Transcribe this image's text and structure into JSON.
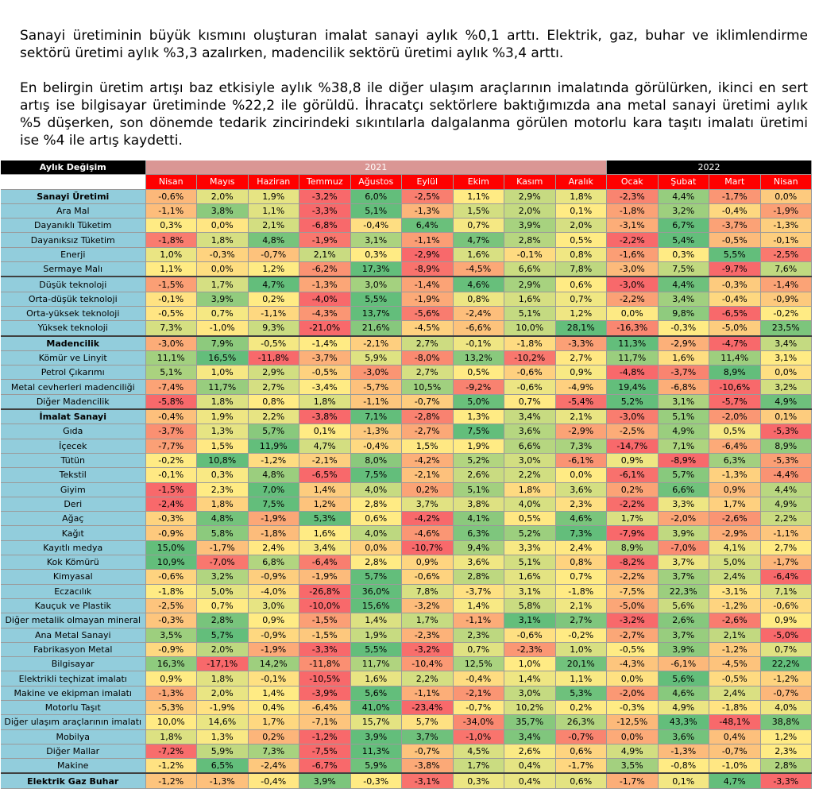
{
  "paragraphs": [
    "Sanayi üretiminin büyük kısmını oluşturan imalat sanayi aylık %0,1 arttı. Elektrik, gaz, buhar ve iklimlendirme sektörü üretimi aylık %3,3 azalırken, madencilik sektörü üretimi aylık %3,4 arttı.",
    "En belirgin üretim artışı baz etkisiyle aylık %38,8 ile diğer ulaşım araçlarının imalatında görülürken, ikinci en sert artış ise bilgisayar üretiminde %22,2 ile görüldü. İhracatçı sektörlere baktığımızda ana metal sanayi üretimi aylık %5 düşerken, son dönemde tedarik zincirindeki sıkıntılarla dalgalanma görülen motorlu kara taşıtı imalatı üretimi ise %4 ile artış kaydetti."
  ],
  "table": {
    "header_label": "Aylık Değişim",
    "year_2021": "2021",
    "year_2022": "2022",
    "months": [
      "Nisan",
      "Mayıs",
      "Haziran",
      "Temmuz",
      "Ağustos",
      "Eylül",
      "Ekim",
      "Kasım",
      "Aralık",
      "Ocak",
      "Şubat",
      "Mart",
      "Nisan"
    ],
    "rows": [
      {
        "label": "Sanayi Üretimi",
        "bold": true,
        "values": [
          "-0,6%",
          "2,0%",
          "1,9%",
          "-3,2%",
          "6,0%",
          "-2,5%",
          "1,1%",
          "2,9%",
          "1,8%",
          "-2,3%",
          "4,4%",
          "-1,7%",
          "0,0%"
        ]
      },
      {
        "label": "Ara Mal",
        "values": [
          "-1,1%",
          "3,8%",
          "1,1%",
          "-3,3%",
          "5,1%",
          "-1,3%",
          "1,5%",
          "2,0%",
          "0,1%",
          "-1,8%",
          "3,2%",
          "-0,4%",
          "-1,9%"
        ]
      },
      {
        "label": "Dayanıklı Tüketim",
        "values": [
          "0,3%",
          "0,0%",
          "2,1%",
          "-6,8%",
          "-0,4%",
          "6,4%",
          "0,7%",
          "3,9%",
          "2,0%",
          "-3,1%",
          "6,7%",
          "-3,7%",
          "-1,3%"
        ]
      },
      {
        "label": "Dayanıksız Tüketim",
        "values": [
          "-1,8%",
          "1,8%",
          "4,8%",
          "-1,9%",
          "3,1%",
          "-1,1%",
          "4,7%",
          "2,8%",
          "0,5%",
          "-2,2%",
          "5,4%",
          "-0,5%",
          "-0,1%"
        ]
      },
      {
        "label": "Enerji",
        "values": [
          "1,0%",
          "-0,3%",
          "-0,7%",
          "2,1%",
          "0,3%",
          "-2,9%",
          "1,6%",
          "-0,1%",
          "0,8%",
          "-1,6%",
          "0,3%",
          "5,5%",
          "-2,5%"
        ]
      },
      {
        "label": "Sermaye Malı",
        "values": [
          "1,1%",
          "0,0%",
          "1,2%",
          "-6,2%",
          "17,3%",
          "-8,9%",
          "-4,5%",
          "6,6%",
          "7,8%",
          "-3,0%",
          "7,5%",
          "-9,7%",
          "7,6%"
        ]
      },
      {
        "label": "Düşük teknoloji",
        "sep": true,
        "values": [
          "-1,5%",
          "1,7%",
          "4,7%",
          "-1,3%",
          "3,0%",
          "-1,4%",
          "4,6%",
          "2,9%",
          "0,6%",
          "-3,0%",
          "4,4%",
          "-0,3%",
          "-1,4%"
        ]
      },
      {
        "label": "Orta-düşük teknoloji",
        "values": [
          "-0,1%",
          "3,9%",
          "0,2%",
          "-4,0%",
          "5,5%",
          "-1,9%",
          "0,8%",
          "1,6%",
          "0,7%",
          "-2,2%",
          "3,4%",
          "-0,4%",
          "-0,9%"
        ]
      },
      {
        "label": "Orta-yüksek teknoloji",
        "values": [
          "-0,5%",
          "0,7%",
          "-1,1%",
          "-4,3%",
          "13,7%",
          "-5,6%",
          "-2,4%",
          "5,1%",
          "1,2%",
          "0,0%",
          "9,8%",
          "-6,5%",
          "-0,2%"
        ]
      },
      {
        "label": "Yüksek teknoloji",
        "values": [
          "7,3%",
          "-1,0%",
          "9,3%",
          "-21,0%",
          "21,6%",
          "-4,5%",
          "-6,6%",
          "10,0%",
          "28,1%",
          "-16,3%",
          "-0,3%",
          "-5,0%",
          "23,5%"
        ]
      },
      {
        "label": "Madencilik",
        "bold": true,
        "sep": true,
        "values": [
          "-3,0%",
          "7,9%",
          "-0,5%",
          "-1,4%",
          "-2,1%",
          "2,7%",
          "-0,1%",
          "-1,8%",
          "-3,3%",
          "11,3%",
          "-2,9%",
          "-4,7%",
          "3,4%"
        ]
      },
      {
        "label": "Kömür ve Linyit",
        "values": [
          "11,1%",
          "16,5%",
          "-11,8%",
          "-3,7%",
          "5,9%",
          "-8,0%",
          "13,2%",
          "-10,2%",
          "2,7%",
          "11,7%",
          "1,6%",
          "11,4%",
          "3,1%"
        ]
      },
      {
        "label": "Petrol Çıkarımı",
        "values": [
          "5,1%",
          "1,0%",
          "2,9%",
          "-0,5%",
          "-3,0%",
          "2,7%",
          "0,5%",
          "-0,6%",
          "0,9%",
          "-4,8%",
          "-3,7%",
          "8,9%",
          "0,0%"
        ]
      },
      {
        "label": "Metal cevherleri madenciliği",
        "values": [
          "-7,4%",
          "11,7%",
          "2,7%",
          "-3,4%",
          "-5,7%",
          "10,5%",
          "-9,2%",
          "-0,6%",
          "-4,9%",
          "19,4%",
          "-6,8%",
          "-10,6%",
          "3,2%"
        ]
      },
      {
        "label": "Diğer Madencilik",
        "values": [
          "-5,8%",
          "1,8%",
          "0,8%",
          "1,8%",
          "-1,1%",
          "-0,7%",
          "5,0%",
          "0,7%",
          "-5,4%",
          "5,2%",
          "3,1%",
          "-5,7%",
          "4,9%"
        ]
      },
      {
        "label": "İmalat Sanayi",
        "bold": true,
        "sep": true,
        "values": [
          "-0,4%",
          "1,9%",
          "2,2%",
          "-3,8%",
          "7,1%",
          "-2,8%",
          "1,3%",
          "3,4%",
          "2,1%",
          "-3,0%",
          "5,1%",
          "-2,0%",
          "0,1%"
        ]
      },
      {
        "label": "Gıda",
        "values": [
          "-3,7%",
          "1,3%",
          "5,7%",
          "0,1%",
          "-1,3%",
          "-2,7%",
          "7,5%",
          "3,6%",
          "-2,9%",
          "-2,5%",
          "4,9%",
          "0,5%",
          "-5,3%"
        ]
      },
      {
        "label": "İçecek",
        "values": [
          "-7,7%",
          "1,5%",
          "11,9%",
          "4,7%",
          "-0,4%",
          "1,5%",
          "1,9%",
          "6,6%",
          "7,3%",
          "-14,7%",
          "7,1%",
          "-6,4%",
          "8,9%"
        ]
      },
      {
        "label": "Tütün",
        "values": [
          "-0,2%",
          "10,8%",
          "-1,2%",
          "-2,1%",
          "8,0%",
          "-4,2%",
          "5,2%",
          "3,0%",
          "-6,1%",
          "0,9%",
          "-8,9%",
          "6,3%",
          "-5,3%"
        ]
      },
      {
        "label": "Tekstil",
        "values": [
          "-0,1%",
          "0,3%",
          "4,8%",
          "-6,5%",
          "7,5%",
          "-2,1%",
          "2,6%",
          "2,2%",
          "0,0%",
          "-6,1%",
          "5,7%",
          "-1,3%",
          "-4,4%"
        ]
      },
      {
        "label": "Giyim",
        "values": [
          "-1,5%",
          "2,3%",
          "7,0%",
          "1,4%",
          "4,0%",
          "0,2%",
          "5,1%",
          "1,8%",
          "3,6%",
          "0,2%",
          "6,6%",
          "0,9%",
          "4,4%"
        ]
      },
      {
        "label": "Deri",
        "values": [
          "-2,4%",
          "1,8%",
          "7,5%",
          "1,2%",
          "2,8%",
          "3,7%",
          "3,8%",
          "4,0%",
          "2,3%",
          "-2,2%",
          "3,3%",
          "1,7%",
          "4,9%"
        ]
      },
      {
        "label": "Ağaç",
        "values": [
          "-0,3%",
          "4,8%",
          "-1,9%",
          "5,3%",
          "0,6%",
          "-4,2%",
          "4,1%",
          "0,5%",
          "4,6%",
          "1,7%",
          "-2,0%",
          "-2,6%",
          "2,2%"
        ]
      },
      {
        "label": "Kağıt",
        "values": [
          "-0,9%",
          "5,8%",
          "-1,8%",
          "1,6%",
          "4,0%",
          "-4,6%",
          "6,3%",
          "5,2%",
          "7,3%",
          "-7,9%",
          "3,9%",
          "-2,9%",
          "-1,1%"
        ]
      },
      {
        "label": "Kayıtlı medya",
        "values": [
          "15,0%",
          "-1,7%",
          "2,4%",
          "3,4%",
          "0,0%",
          "-10,7%",
          "9,4%",
          "3,3%",
          "2,4%",
          "8,9%",
          "-7,0%",
          "4,1%",
          "2,7%"
        ]
      },
      {
        "label": "Kok Kömürü",
        "values": [
          "10,9%",
          "-7,0%",
          "6,8%",
          "-6,4%",
          "2,8%",
          "0,9%",
          "3,6%",
          "5,1%",
          "0,8%",
          "-8,2%",
          "3,7%",
          "5,0%",
          "-1,7%"
        ]
      },
      {
        "label": "Kimyasal",
        "values": [
          "-0,6%",
          "3,2%",
          "-0,9%",
          "-1,9%",
          "5,7%",
          "-0,6%",
          "2,8%",
          "1,6%",
          "0,7%",
          "-2,2%",
          "3,7%",
          "2,4%",
          "-6,4%"
        ]
      },
      {
        "label": "Eczacılık",
        "values": [
          "-1,8%",
          "5,0%",
          "-4,0%",
          "-26,8%",
          "36,0%",
          "7,8%",
          "-3,7%",
          "3,1%",
          "-1,8%",
          "-7,5%",
          "22,3%",
          "-3,1%",
          "7,1%"
        ]
      },
      {
        "label": "Kauçuk ve Plastik",
        "values": [
          "-2,5%",
          "0,7%",
          "3,0%",
          "-10,0%",
          "15,6%",
          "-3,2%",
          "1,4%",
          "5,8%",
          "2,1%",
          "-5,0%",
          "5,6%",
          "-1,2%",
          "-0,6%"
        ]
      },
      {
        "label": "Diğer metalik olmayan mineral",
        "values": [
          "-0,3%",
          "2,8%",
          "0,9%",
          "-1,5%",
          "1,4%",
          "1,7%",
          "-1,1%",
          "3,1%",
          "2,7%",
          "-3,2%",
          "2,6%",
          "-2,6%",
          "0,9%"
        ]
      },
      {
        "label": "Ana Metal Sanayi",
        "values": [
          "3,5%",
          "5,7%",
          "-0,9%",
          "-1,5%",
          "1,9%",
          "-2,3%",
          "2,3%",
          "-0,6%",
          "-0,2%",
          "-2,7%",
          "3,7%",
          "2,1%",
          "-5,0%"
        ]
      },
      {
        "label": "Fabrikasyon Metal",
        "values": [
          "-0,9%",
          "2,0%",
          "-1,9%",
          "-3,3%",
          "5,5%",
          "-3,2%",
          "0,7%",
          "-2,3%",
          "1,0%",
          "-0,5%",
          "3,9%",
          "-1,2%",
          "0,7%"
        ]
      },
      {
        "label": "Bilgisayar",
        "values": [
          "16,3%",
          "-17,1%",
          "14,2%",
          "-11,8%",
          "11,7%",
          "-10,4%",
          "12,5%",
          "1,0%",
          "20,1%",
          "-4,3%",
          "-6,1%",
          "-4,5%",
          "22,2%"
        ]
      },
      {
        "label": "Elektrikli teçhizat imalatı",
        "values": [
          "0,9%",
          "1,8%",
          "-0,1%",
          "-10,5%",
          "1,6%",
          "2,2%",
          "-0,4%",
          "1,4%",
          "1,1%",
          "0,0%",
          "5,6%",
          "-0,5%",
          "-1,2%"
        ]
      },
      {
        "label": "Makine ve ekipman imalatı",
        "values": [
          "-1,3%",
          "2,0%",
          "1,4%",
          "-3,9%",
          "5,6%",
          "-1,1%",
          "-2,1%",
          "3,0%",
          "5,3%",
          "-2,0%",
          "4,6%",
          "2,4%",
          "-0,7%"
        ]
      },
      {
        "label": "Motorlu Taşıt",
        "values": [
          "-5,3%",
          "-1,9%",
          "0,4%",
          "-6,4%",
          "41,0%",
          "-23,4%",
          "-0,7%",
          "10,2%",
          "0,2%",
          "-0,3%",
          "4,9%",
          "-1,8%",
          "4,0%"
        ]
      },
      {
        "label": "Diğer ulaşım araçlarının imalatı",
        "values": [
          "10,0%",
          "14,6%",
          "1,7%",
          "-7,1%",
          "15,7%",
          "5,7%",
          "-34,0%",
          "35,7%",
          "26,3%",
          "-12,5%",
          "43,3%",
          "-48,1%",
          "38,8%"
        ]
      },
      {
        "label": "Mobilya",
        "values": [
          "1,8%",
          "1,3%",
          "0,2%",
          "-1,2%",
          "3,9%",
          "3,7%",
          "-1,0%",
          "3,4%",
          "-0,7%",
          "0,0%",
          "3,6%",
          "0,4%",
          "1,2%"
        ]
      },
      {
        "label": "Diğer Mallar",
        "values": [
          "-7,2%",
          "5,9%",
          "7,3%",
          "-7,5%",
          "11,3%",
          "-0,7%",
          "4,5%",
          "2,6%",
          "0,6%",
          "4,9%",
          "-1,3%",
          "-0,7%",
          "2,3%"
        ]
      },
      {
        "label": "Makine",
        "values": [
          "-1,2%",
          "6,5%",
          "-2,4%",
          "-6,7%",
          "5,9%",
          "-3,8%",
          "1,7%",
          "0,4%",
          "-1,7%",
          "3,5%",
          "-0,8%",
          "-1,0%",
          "2,8%"
        ]
      },
      {
        "label": "Elektrik Gaz Buhar",
        "bold": true,
        "sep": true,
        "values": [
          "-1,2%",
          "-1,3%",
          "-0,4%",
          "3,9%",
          "-0,3%",
          "-3,1%",
          "0,3%",
          "0,4%",
          "0,6%",
          "-1,7%",
          "0,1%",
          "4,7%",
          "-3,3%"
        ]
      }
    ]
  }
}
